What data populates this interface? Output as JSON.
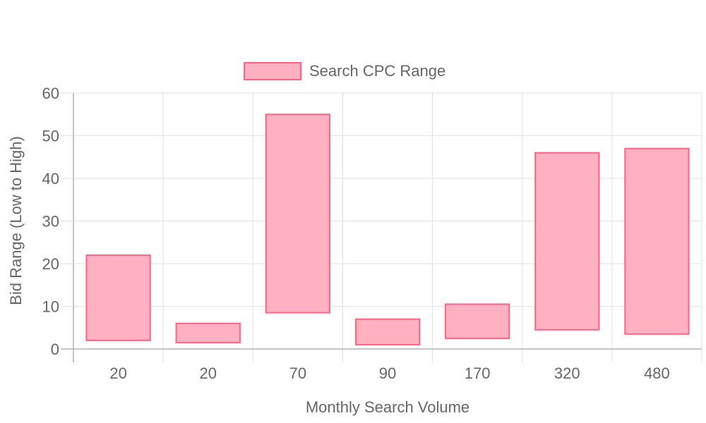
{
  "chart_data": {
    "type": "bar",
    "subtype": "floating-range",
    "title": "",
    "xlabel": "Monthly Search Volume",
    "ylabel": "Bid Range (Low to High)",
    "categories": [
      "20",
      "20",
      "70",
      "90",
      "170",
      "320",
      "480"
    ],
    "series": [
      {
        "name": "Search CPC Range",
        "ranges": [
          [
            2,
            22
          ],
          [
            1.5,
            6
          ],
          [
            8.5,
            55
          ],
          [
            1,
            7
          ],
          [
            2.5,
            10.5
          ],
          [
            4.5,
            46
          ],
          [
            3.5,
            47
          ]
        ]
      }
    ],
    "ylim": [
      0,
      60
    ],
    "yticks": [
      0,
      10,
      20,
      30,
      40,
      50,
      60
    ],
    "grid": true,
    "legend": "top-center",
    "colors": {
      "bar_fill": "#ffb1c1",
      "bar_border": "#ff6384",
      "grid": "#e1e1e1",
      "axis": "#b0b0b0",
      "text": "#666666"
    }
  }
}
